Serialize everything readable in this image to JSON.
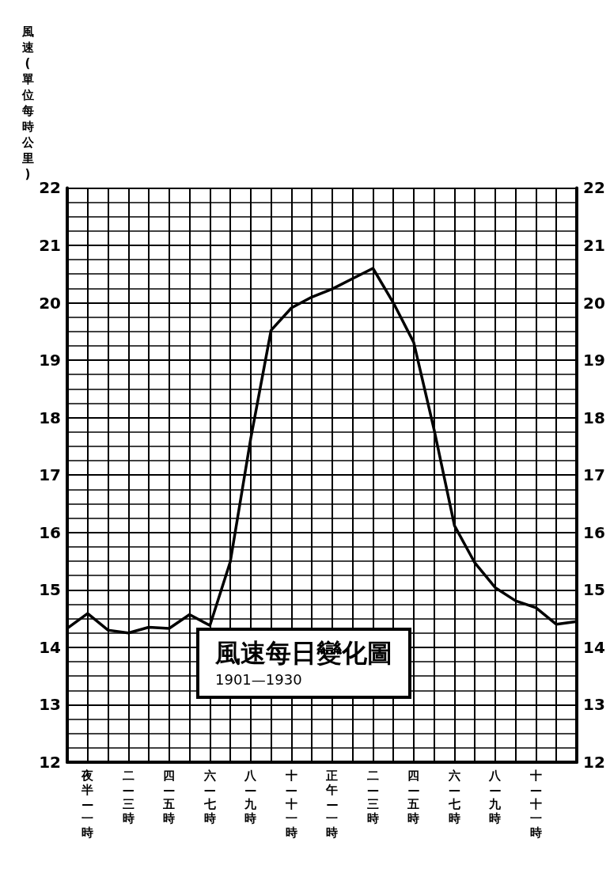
{
  "chart_data": {
    "type": "line",
    "title": "風速每日變化圖",
    "subtitle": "1901—1930",
    "ylabel": "風速(單位每時公里)",
    "categories": [
      null,
      "夜半—一時",
      null,
      "二—三時",
      null,
      "四—五時",
      null,
      "六—七時",
      null,
      "八—九時",
      null,
      "十—十一時",
      null,
      "正午—一時",
      null,
      "二—三時",
      null,
      "四—五時",
      null,
      "六—七時",
      null,
      "八—九時",
      null,
      "十—十一時",
      null,
      null
    ],
    "values": [
      14.33,
      14.59,
      14.3,
      14.25,
      14.35,
      14.33,
      14.57,
      14.38,
      15.49,
      17.63,
      19.52,
      19.91,
      20.1,
      20.24,
      20.42,
      20.6,
      20.0,
      19.31,
      17.79,
      16.12,
      15.47,
      15.04,
      14.81,
      14.69,
      14.4,
      14.45
    ],
    "color": "#000000",
    "ylim": [
      12,
      22
    ],
    "yticks": [
      12,
      13,
      14,
      15,
      16,
      17,
      18,
      19,
      20,
      21,
      22
    ],
    "y2lim": [
      12,
      22
    ],
    "y2ticks": [
      12,
      13,
      14,
      15,
      16,
      17,
      18,
      19,
      20,
      21,
      22
    ],
    "grid": true
  }
}
